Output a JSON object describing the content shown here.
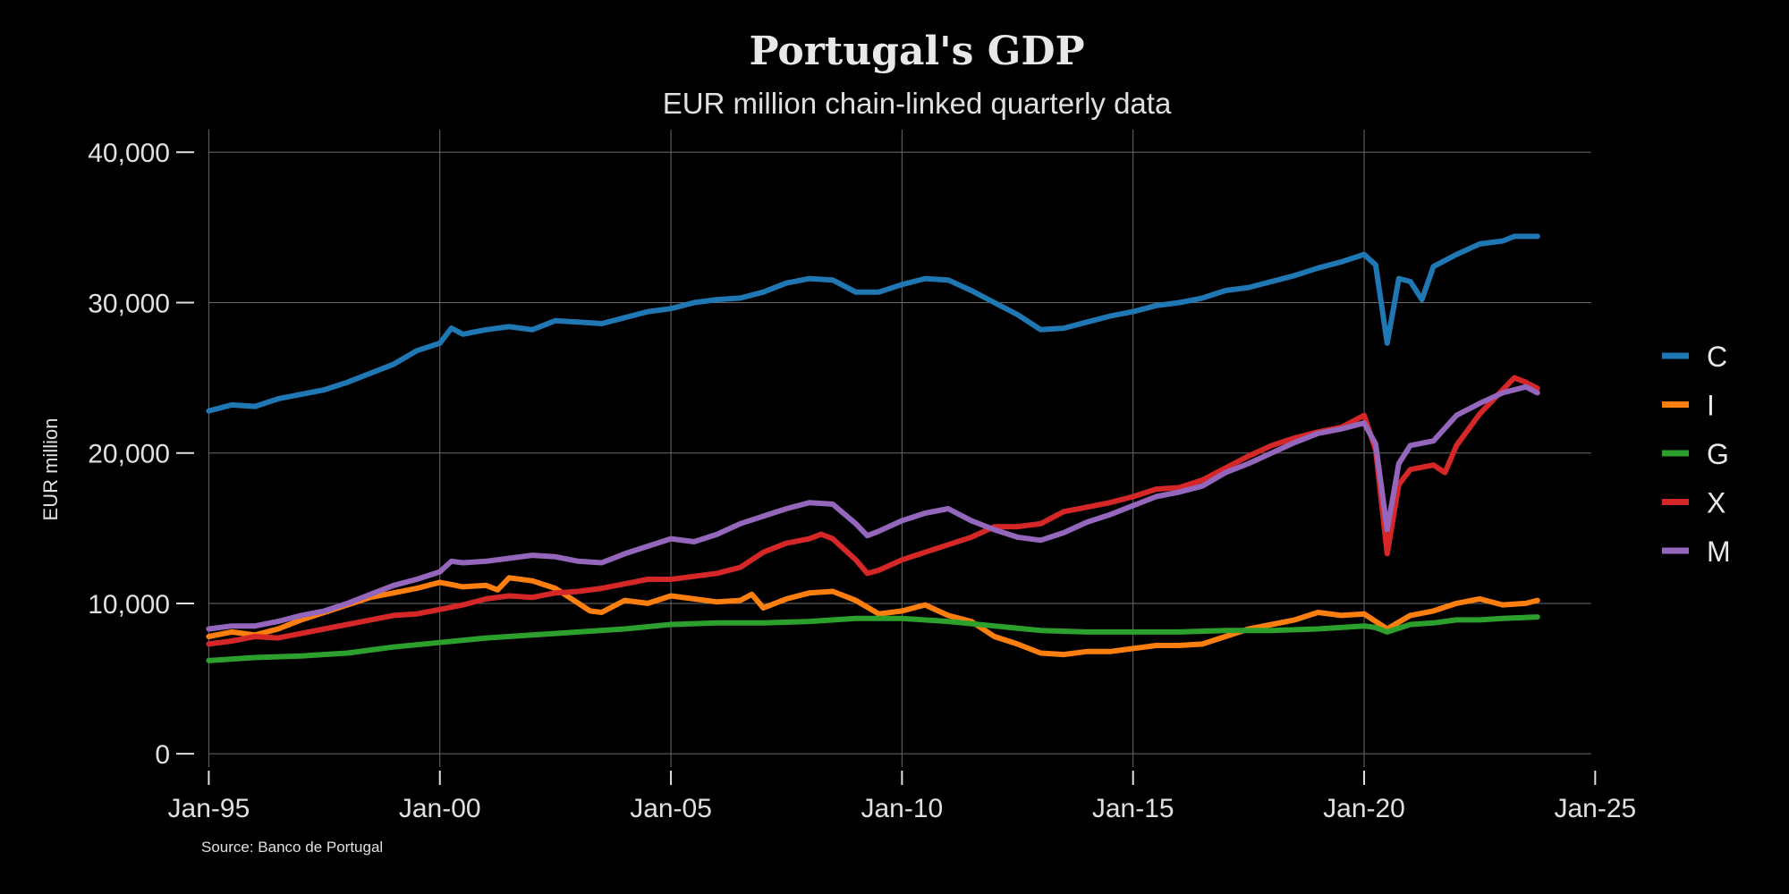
{
  "chart_data": {
    "type": "line",
    "title": "Portugal's GDP",
    "subtitle": "EUR million chain-linked quarterly data",
    "ylabel": "EUR million",
    "source": "Source: Banco de Portugal",
    "xlim": [
      1994.45,
      2026.0
    ],
    "ylim": [
      -1000,
      41500
    ],
    "x_ticks": [
      {
        "value": 1995,
        "label": "Jan-95"
      },
      {
        "value": 2000,
        "label": "Jan-00"
      },
      {
        "value": 2005,
        "label": "Jan-05"
      },
      {
        "value": 2010,
        "label": "Jan-10"
      },
      {
        "value": 2015,
        "label": "Jan-15"
      },
      {
        "value": 2020,
        "label": "Jan-20"
      },
      {
        "value": 2025,
        "label": "Jan-25"
      }
    ],
    "y_ticks": [
      {
        "value": 0,
        "label": "0"
      },
      {
        "value": 10000,
        "label": "10,000"
      },
      {
        "value": 20000,
        "label": "20,000"
      },
      {
        "value": 30000,
        "label": "30,000"
      },
      {
        "value": 40000,
        "label": "40,000"
      }
    ],
    "grid": true,
    "legend_position": "right",
    "series": [
      {
        "name": "C",
        "color": "#1f77b4",
        "points": [
          [
            1995,
            22800
          ],
          [
            1995.5,
            23200
          ],
          [
            1996,
            23100
          ],
          [
            1996.5,
            23600
          ],
          [
            1997,
            23900
          ],
          [
            1997.5,
            24200
          ],
          [
            1998,
            24700
          ],
          [
            1998.5,
            25300
          ],
          [
            1999,
            25900
          ],
          [
            1999.5,
            26800
          ],
          [
            2000,
            27300
          ],
          [
            2000.25,
            28300
          ],
          [
            2000.5,
            27900
          ],
          [
            2001,
            28200
          ],
          [
            2001.5,
            28400
          ],
          [
            2002,
            28200
          ],
          [
            2002.5,
            28800
          ],
          [
            2003,
            28700
          ],
          [
            2003.5,
            28600
          ],
          [
            2004,
            29000
          ],
          [
            2004.5,
            29400
          ],
          [
            2005,
            29600
          ],
          [
            2005.5,
            30000
          ],
          [
            2006,
            30200
          ],
          [
            2006.5,
            30300
          ],
          [
            2007,
            30700
          ],
          [
            2007.5,
            31300
          ],
          [
            2008,
            31600
          ],
          [
            2008.5,
            31500
          ],
          [
            2009,
            30700
          ],
          [
            2009.5,
            30700
          ],
          [
            2010,
            31200
          ],
          [
            2010.5,
            31600
          ],
          [
            2011,
            31500
          ],
          [
            2011.5,
            30800
          ],
          [
            2012,
            30000
          ],
          [
            2012.5,
            29200
          ],
          [
            2013,
            28200
          ],
          [
            2013.5,
            28300
          ],
          [
            2014,
            28700
          ],
          [
            2014.5,
            29100
          ],
          [
            2015,
            29400
          ],
          [
            2015.5,
            29800
          ],
          [
            2016,
            30000
          ],
          [
            2016.5,
            30300
          ],
          [
            2017,
            30800
          ],
          [
            2017.5,
            31000
          ],
          [
            2018,
            31400
          ],
          [
            2018.5,
            31800
          ],
          [
            2019,
            32300
          ],
          [
            2019.5,
            32700
          ],
          [
            2020,
            33200
          ],
          [
            2020.25,
            32500
          ],
          [
            2020.5,
            27300
          ],
          [
            2020.75,
            31600
          ],
          [
            2021,
            31400
          ],
          [
            2021.25,
            30200
          ],
          [
            2021.5,
            32400
          ],
          [
            2022,
            33200
          ],
          [
            2022.5,
            33900
          ],
          [
            2023,
            34100
          ],
          [
            2023.25,
            34400
          ],
          [
            2023.75,
            34400
          ]
        ]
      },
      {
        "name": "I",
        "color": "#ff7f0e",
        "points": [
          [
            1995,
            7800
          ],
          [
            1995.5,
            8100
          ],
          [
            1996,
            7900
          ],
          [
            1996.5,
            8300
          ],
          [
            1997,
            8900
          ],
          [
            1997.5,
            9400
          ],
          [
            1998,
            9900
          ],
          [
            1998.5,
            10400
          ],
          [
            1999,
            10700
          ],
          [
            1999.5,
            11000
          ],
          [
            2000,
            11400
          ],
          [
            2000.5,
            11100
          ],
          [
            2001,
            11200
          ],
          [
            2001.25,
            10900
          ],
          [
            2001.5,
            11700
          ],
          [
            2002,
            11500
          ],
          [
            2002.5,
            11000
          ],
          [
            2003,
            10000
          ],
          [
            2003.25,
            9500
          ],
          [
            2003.5,
            9400
          ],
          [
            2004,
            10200
          ],
          [
            2004.5,
            10000
          ],
          [
            2005,
            10500
          ],
          [
            2005.5,
            10300
          ],
          [
            2006,
            10100
          ],
          [
            2006.5,
            10200
          ],
          [
            2006.75,
            10600
          ],
          [
            2007,
            9700
          ],
          [
            2007.5,
            10300
          ],
          [
            2008,
            10700
          ],
          [
            2008.5,
            10800
          ],
          [
            2009,
            10200
          ],
          [
            2009.5,
            9300
          ],
          [
            2010,
            9500
          ],
          [
            2010.5,
            9900
          ],
          [
            2011,
            9200
          ],
          [
            2011.5,
            8800
          ],
          [
            2012,
            7800
          ],
          [
            2012.5,
            7300
          ],
          [
            2013,
            6700
          ],
          [
            2013.5,
            6600
          ],
          [
            2014,
            6800
          ],
          [
            2014.5,
            6800
          ],
          [
            2015,
            7000
          ],
          [
            2015.5,
            7200
          ],
          [
            2016,
            7200
          ],
          [
            2016.5,
            7300
          ],
          [
            2017,
            7800
          ],
          [
            2017.5,
            8300
          ],
          [
            2018,
            8600
          ],
          [
            2018.5,
            8900
          ],
          [
            2019,
            9400
          ],
          [
            2019.5,
            9200
          ],
          [
            2020,
            9300
          ],
          [
            2020.5,
            8300
          ],
          [
            2021,
            9200
          ],
          [
            2021.5,
            9500
          ],
          [
            2022,
            10000
          ],
          [
            2022.5,
            10300
          ],
          [
            2023,
            9900
          ],
          [
            2023.5,
            10000
          ],
          [
            2023.75,
            10200
          ]
        ]
      },
      {
        "name": "G",
        "color": "#2ca02c",
        "points": [
          [
            1995,
            6200
          ],
          [
            1996,
            6400
          ],
          [
            1997,
            6500
          ],
          [
            1998,
            6700
          ],
          [
            1999,
            7100
          ],
          [
            2000,
            7400
          ],
          [
            2001,
            7700
          ],
          [
            2002,
            7900
          ],
          [
            2003,
            8100
          ],
          [
            2004,
            8300
          ],
          [
            2005,
            8600
          ],
          [
            2006,
            8700
          ],
          [
            2007,
            8700
          ],
          [
            2008,
            8800
          ],
          [
            2009,
            9000
          ],
          [
            2010,
            9000
          ],
          [
            2011,
            8800
          ],
          [
            2012,
            8500
          ],
          [
            2013,
            8200
          ],
          [
            2014,
            8100
          ],
          [
            2015,
            8100
          ],
          [
            2016,
            8100
          ],
          [
            2017,
            8200
          ],
          [
            2018,
            8200
          ],
          [
            2019,
            8300
          ],
          [
            2020,
            8500
          ],
          [
            2020.25,
            8400
          ],
          [
            2020.5,
            8100
          ],
          [
            2021,
            8600
          ],
          [
            2021.5,
            8700
          ],
          [
            2022,
            8900
          ],
          [
            2022.5,
            8900
          ],
          [
            2023,
            9000
          ],
          [
            2023.75,
            9100
          ]
        ]
      },
      {
        "name": "X",
        "color": "#d62728",
        "points": [
          [
            1995,
            7300
          ],
          [
            1995.5,
            7500
          ],
          [
            1996,
            7800
          ],
          [
            1996.5,
            7700
          ],
          [
            1997,
            8000
          ],
          [
            1997.5,
            8300
          ],
          [
            1998,
            8600
          ],
          [
            1998.5,
            8900
          ],
          [
            1999,
            9200
          ],
          [
            1999.5,
            9300
          ],
          [
            2000,
            9600
          ],
          [
            2000.5,
            9900
          ],
          [
            2001,
            10300
          ],
          [
            2001.5,
            10500
          ],
          [
            2002,
            10400
          ],
          [
            2002.5,
            10700
          ],
          [
            2003,
            10800
          ],
          [
            2003.5,
            11000
          ],
          [
            2004,
            11300
          ],
          [
            2004.5,
            11600
          ],
          [
            2005,
            11600
          ],
          [
            2005.5,
            11800
          ],
          [
            2006,
            12000
          ],
          [
            2006.5,
            12400
          ],
          [
            2007,
            13400
          ],
          [
            2007.5,
            14000
          ],
          [
            2008,
            14300
          ],
          [
            2008.25,
            14600
          ],
          [
            2008.5,
            14300
          ],
          [
            2009,
            12900
          ],
          [
            2009.25,
            12000
          ],
          [
            2009.5,
            12200
          ],
          [
            2010,
            12900
          ],
          [
            2010.5,
            13400
          ],
          [
            2011,
            13900
          ],
          [
            2011.5,
            14400
          ],
          [
            2012,
            15100
          ],
          [
            2012.5,
            15100
          ],
          [
            2013,
            15300
          ],
          [
            2013.5,
            16100
          ],
          [
            2014,
            16400
          ],
          [
            2014.5,
            16700
          ],
          [
            2015,
            17100
          ],
          [
            2015.5,
            17600
          ],
          [
            2016,
            17700
          ],
          [
            2016.5,
            18200
          ],
          [
            2017,
            19000
          ],
          [
            2017.5,
            19800
          ],
          [
            2018,
            20500
          ],
          [
            2018.5,
            21000
          ],
          [
            2019,
            21400
          ],
          [
            2019.5,
            21700
          ],
          [
            2020,
            22500
          ],
          [
            2020.25,
            20200
          ],
          [
            2020.5,
            13300
          ],
          [
            2020.75,
            17900
          ],
          [
            2021,
            18900
          ],
          [
            2021.5,
            19200
          ],
          [
            2021.75,
            18700
          ],
          [
            2022,
            20500
          ],
          [
            2022.5,
            22600
          ],
          [
            2023,
            24200
          ],
          [
            2023.25,
            25000
          ],
          [
            2023.5,
            24700
          ],
          [
            2023.75,
            24300
          ]
        ]
      },
      {
        "name": "M",
        "color": "#9467bd",
        "points": [
          [
            1995,
            8300
          ],
          [
            1995.5,
            8500
          ],
          [
            1996,
            8500
          ],
          [
            1996.5,
            8800
          ],
          [
            1997,
            9200
          ],
          [
            1997.5,
            9500
          ],
          [
            1998,
            10000
          ],
          [
            1998.5,
            10600
          ],
          [
            1999,
            11200
          ],
          [
            1999.5,
            11600
          ],
          [
            2000,
            12100
          ],
          [
            2000.25,
            12800
          ],
          [
            2000.5,
            12700
          ],
          [
            2001,
            12800
          ],
          [
            2001.5,
            13000
          ],
          [
            2002,
            13200
          ],
          [
            2002.5,
            13100
          ],
          [
            2003,
            12800
          ],
          [
            2003.5,
            12700
          ],
          [
            2004,
            13300
          ],
          [
            2004.5,
            13800
          ],
          [
            2005,
            14300
          ],
          [
            2005.5,
            14100
          ],
          [
            2006,
            14600
          ],
          [
            2006.5,
            15300
          ],
          [
            2007,
            15800
          ],
          [
            2007.5,
            16300
          ],
          [
            2008,
            16700
          ],
          [
            2008.5,
            16600
          ],
          [
            2009,
            15300
          ],
          [
            2009.25,
            14500
          ],
          [
            2009.5,
            14800
          ],
          [
            2010,
            15500
          ],
          [
            2010.5,
            16000
          ],
          [
            2011,
            16300
          ],
          [
            2011.5,
            15500
          ],
          [
            2012,
            14900
          ],
          [
            2012.5,
            14400
          ],
          [
            2013,
            14200
          ],
          [
            2013.5,
            14700
          ],
          [
            2014,
            15400
          ],
          [
            2014.5,
            15900
          ],
          [
            2015,
            16500
          ],
          [
            2015.5,
            17100
          ],
          [
            2016,
            17400
          ],
          [
            2016.5,
            17800
          ],
          [
            2017,
            18700
          ],
          [
            2017.5,
            19300
          ],
          [
            2018,
            20000
          ],
          [
            2018.5,
            20700
          ],
          [
            2019,
            21300
          ],
          [
            2019.5,
            21600
          ],
          [
            2020,
            22000
          ],
          [
            2020.25,
            20600
          ],
          [
            2020.5,
            14900
          ],
          [
            2020.75,
            19300
          ],
          [
            2021,
            20500
          ],
          [
            2021.5,
            20800
          ],
          [
            2022,
            22500
          ],
          [
            2022.5,
            23300
          ],
          [
            2023,
            24000
          ],
          [
            2023.5,
            24400
          ],
          [
            2023.75,
            24000
          ]
        ]
      }
    ]
  }
}
